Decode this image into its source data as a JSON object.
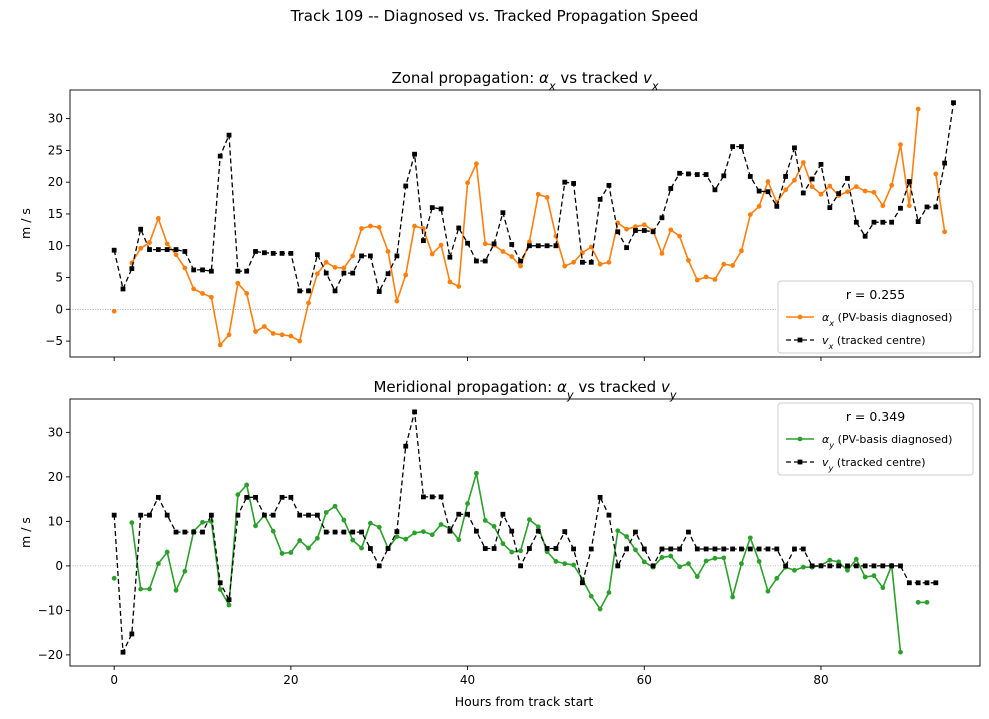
{
  "figure": {
    "title": "Track 109 -- Diagnosed vs. Tracked Propagation Speed",
    "xlabel": "Hours from track start"
  },
  "colors": {
    "alpha_x": "#ff7f0e",
    "alpha_y": "#2ca02c",
    "tracked": "#000000",
    "zero_line": "#808080"
  },
  "chart_data": [
    {
      "type": "line",
      "title": "Zonal propagation: αx vs tracked vx",
      "title_parts": {
        "prefix": "Zonal propagation: ",
        "a": "α",
        "a_sub": "x",
        "mid": " vs tracked ",
        "v": "v",
        "v_sub": "x"
      },
      "ylabel": "m / s",
      "xlim": [
        -5,
        98
      ],
      "ylim": [
        -7.5,
        34.5
      ],
      "xticks": [
        0,
        20,
        40,
        60,
        80
      ],
      "yticks": [
        -5,
        0,
        5,
        10,
        15,
        20,
        25,
        30
      ],
      "show_xtick_labels": false,
      "legend": {
        "position": "lower-right",
        "title": "r = 0.255",
        "entries": [
          {
            "sym": "α",
            "sub": "x",
            "text": " (PV-basis diagnosed)"
          },
          {
            "sym": "v",
            "sub": "x",
            "text": " (tracked centre)"
          }
        ]
      },
      "series": [
        {
          "name": "αx (PV-basis diagnosed)",
          "style": "solid-dot",
          "color": "#ff7f0e",
          "values": [
            -0.3,
            null,
            7.3,
            9.6,
            10.5,
            14.3,
            10.3,
            8.6,
            6.5,
            3.2,
            2.5,
            1.9,
            -5.6,
            -4.0,
            4.1,
            2.5,
            -3.5,
            -2.7,
            -3.8,
            -4.0,
            -4.2,
            -5.0,
            1.0,
            5.6,
            7.4,
            6.6,
            6.5,
            8.4,
            12.7,
            13.1,
            12.9,
            9.1,
            1.3,
            5.4,
            13.1,
            12.7,
            8.7,
            10.1,
            4.3,
            3.6,
            19.9,
            22.9,
            10.3,
            10.1,
            9.1,
            8.3,
            6.8,
            10.6,
            18.1,
            17.6,
            11.5,
            6.8,
            7.4,
            8.9,
            9.8,
            7.1,
            7.4,
            13.6,
            12.6,
            13.0,
            13.3,
            12.4,
            8.8,
            12.5,
            11.5,
            7.7,
            4.6,
            5.1,
            4.7,
            7.1,
            6.9,
            9.2,
            14.9,
            16.2,
            20.1,
            16.8,
            18.8,
            20.3,
            23.1,
            19.3,
            18.1,
            19.4,
            17.9,
            18.5,
            19.3,
            18.6,
            18.4,
            16.3,
            19.5,
            25.9,
            16.3,
            31.5,
            null,
            21.3,
            12.2
          ]
        },
        {
          "name": "vx (tracked centre)",
          "style": "dashed-square",
          "color": "#000000",
          "values": [
            9.3,
            3.2,
            6.4,
            12.6,
            9.4,
            9.4,
            9.4,
            9.4,
            9.1,
            6.2,
            6.2,
            6.0,
            24.1,
            27.4,
            6.0,
            6.0,
            9.1,
            8.9,
            8.8,
            8.8,
            8.8,
            2.9,
            2.9,
            8.6,
            5.7,
            2.9,
            5.7,
            5.7,
            8.4,
            8.4,
            2.8,
            5.6,
            8.4,
            19.4,
            24.4,
            10.8,
            16.0,
            15.8,
            8.2,
            12.8,
            10.4,
            7.6,
            7.6,
            10.3,
            15.2,
            10.2,
            7.6,
            10.0,
            10.0,
            10.0,
            10.0,
            20.0,
            19.8,
            7.4,
            7.4,
            17.3,
            19.5,
            12.2,
            9.7,
            12.4,
            12.4,
            12.2,
            14.4,
            19.0,
            21.4,
            21.3,
            21.2,
            21.2,
            18.8,
            21.0,
            25.6,
            25.6,
            20.9,
            18.6,
            18.5,
            16.2,
            20.9,
            25.4,
            18.3,
            20.5,
            22.8,
            16.0,
            18.2,
            20.6,
            13.7,
            11.5,
            13.7,
            13.7,
            13.7,
            15.9,
            20.1,
            13.8,
            16.1,
            16.1,
            23.0,
            32.5
          ]
        }
      ]
    },
    {
      "type": "line",
      "title": "Meridional propagation: αy vs tracked vy",
      "title_parts": {
        "prefix": "Meridional propagation: ",
        "a": "α",
        "a_sub": "y",
        "mid": " vs tracked ",
        "v": "v",
        "v_sub": "y"
      },
      "ylabel": "m / s",
      "xlim": [
        -5,
        98
      ],
      "ylim": [
        -22.5,
        37.5
      ],
      "xticks": [
        0,
        20,
        40,
        60,
        80
      ],
      "yticks": [
        -20,
        -10,
        0,
        10,
        20,
        30
      ],
      "show_xtick_labels": true,
      "legend": {
        "position": "upper-right",
        "title": "r = 0.349",
        "entries": [
          {
            "sym": "α",
            "sub": "y",
            "text": " (PV-basis diagnosed)"
          },
          {
            "sym": "v",
            "sub": "y",
            "text": " (tracked centre)"
          }
        ]
      },
      "series": [
        {
          "name": "αy (PV-basis diagnosed)",
          "style": "solid-dot",
          "color": "#2ca02c",
          "values": [
            -2.8,
            null,
            9.7,
            -5.2,
            -5.2,
            0.5,
            3.1,
            -5.5,
            -1.2,
            7.8,
            9.8,
            10.0,
            -5.3,
            -8.8,
            16.0,
            18.2,
            9.0,
            11.4,
            7.8,
            2.8,
            3.0,
            5.7,
            4.0,
            6.2,
            12.0,
            13.4,
            10.3,
            5.8,
            4.0,
            9.6,
            8.7,
            3.9,
            6.6,
            6.0,
            7.4,
            7.7,
            7.0,
            9.3,
            8.4,
            5.9,
            14.0,
            20.8,
            10.2,
            8.9,
            5.0,
            3.1,
            3.4,
            10.4,
            8.8,
            3.2,
            1.0,
            0.5,
            0.2,
            -3.0,
            -6.8,
            -9.7,
            -6.0,
            7.9,
            6.6,
            3.6,
            0.9,
            -0.3,
            1.9,
            2.2,
            -0.2,
            0.5,
            -2.4,
            1.1,
            1.7,
            1.8,
            -7.0,
            0.5,
            6.3,
            1.0,
            -5.7,
            -2.8,
            -0.3,
            -1.0,
            -0.3,
            -0.3,
            0.1,
            1.3,
            0.9,
            -1.0,
            1.5,
            -2.5,
            -2.2,
            -4.9,
            0.1,
            -19.4,
            null,
            -8.2,
            -8.2,
            null,
            null
          ]
        },
        {
          "name": "vy (tracked centre)",
          "style": "dashed-square",
          "color": "#000000",
          "values": [
            11.4,
            -19.4,
            -15.3,
            11.4,
            11.4,
            15.4,
            11.4,
            7.6,
            7.6,
            7.6,
            7.6,
            11.4,
            -3.8,
            -7.6,
            11.4,
            15.4,
            15.4,
            11.4,
            11.4,
            15.4,
            15.4,
            11.4,
            11.4,
            11.4,
            7.6,
            7.6,
            7.6,
            7.6,
            7.6,
            3.9,
            0.0,
            3.9,
            7.7,
            26.9,
            34.6,
            15.5,
            15.5,
            15.5,
            7.8,
            11.6,
            11.6,
            7.8,
            3.9,
            3.9,
            11.6,
            7.8,
            0.0,
            3.9,
            7.8,
            3.9,
            3.9,
            7.7,
            3.8,
            -3.8,
            3.8,
            15.4,
            11.4,
            0.0,
            3.8,
            7.6,
            3.8,
            0.0,
            3.8,
            3.8,
            3.8,
            7.6,
            3.8,
            3.8,
            3.8,
            3.8,
            3.8,
            3.8,
            3.8,
            3.8,
            3.8,
            3.8,
            0.0,
            3.8,
            3.8,
            0.0,
            0.0,
            0.0,
            0.0,
            0.0,
            0.0,
            0.0,
            0.0,
            0.0,
            0.0,
            0.0,
            -3.8,
            -3.8,
            -3.8,
            -3.8
          ]
        }
      ]
    }
  ]
}
